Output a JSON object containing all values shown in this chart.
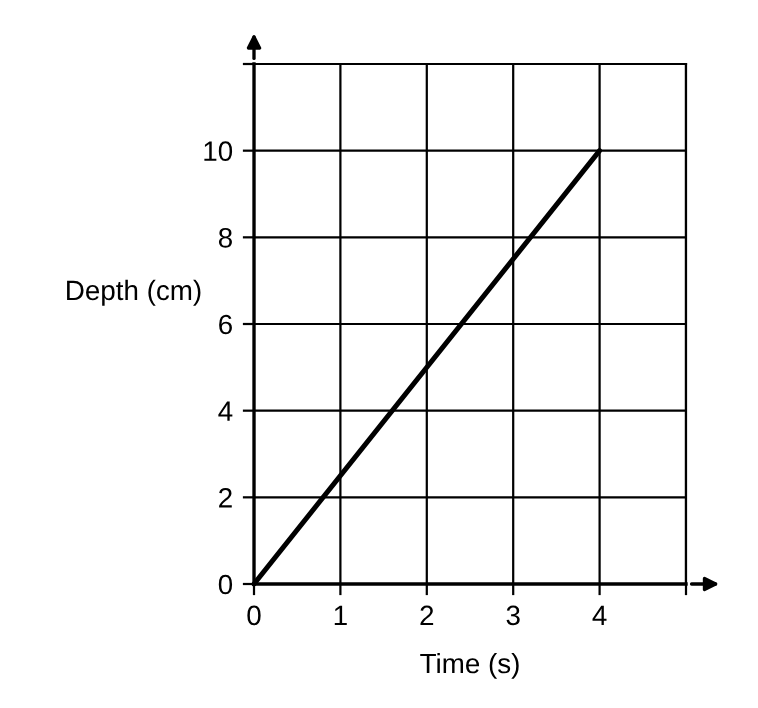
{
  "chart_data": {
    "type": "line",
    "xlabel": "Time (s)",
    "ylabel": "Depth (cm)",
    "x": [
      0,
      4
    ],
    "values": [
      0,
      10
    ],
    "color": "#000000",
    "xlim": [
      0,
      5
    ],
    "ylim": [
      0,
      12
    ],
    "xticks": [
      0,
      1,
      2,
      3,
      4,
      {
        "value": 5,
        "label": null
      }
    ],
    "yticks": [
      0,
      2,
      4,
      6,
      8,
      10,
      {
        "value": 12,
        "label": null
      }
    ],
    "grid": true,
    "marker": "none",
    "line_style": "solid"
  }
}
